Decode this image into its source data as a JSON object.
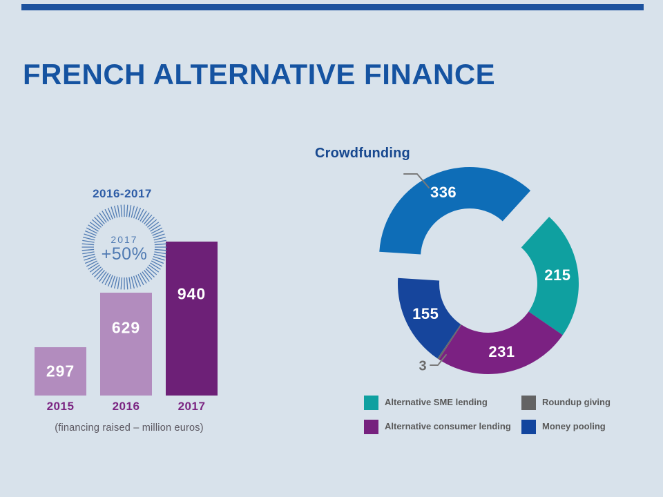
{
  "slide": {
    "title": "FRENCH ALTERNATIVE FINANCE",
    "colors": {
      "background": "#d8e2eb",
      "top_bar": "#1c529e",
      "title": "#1553a1"
    }
  },
  "chart_data": [
    {
      "type": "bar",
      "header": "2016-2017",
      "badge": {
        "year": "2017",
        "growth": "+50%",
        "color": "#4f7ab2"
      },
      "categories": [
        "2015",
        "2016",
        "2017"
      ],
      "values": [
        297,
        629,
        940
      ],
      "bar_colors": [
        "#b28cbe",
        "#b28cbe",
        "#6d2077"
      ],
      "value_label_color": "#ffffff",
      "category_label_color": "#7b2582",
      "header_color": "#2d5ca6",
      "caption": "(financing raised – million euros)",
      "caption_color": "#59555e",
      "ylim": [
        0,
        940
      ]
    },
    {
      "type": "donut",
      "title": "Crowdfunding",
      "title_color": "#17488f",
      "total": 940,
      "segments": [
        {
          "label": "Crowdfunding",
          "value": 336,
          "color": "#0e6db7",
          "exploded": true
        },
        {
          "label": "Alternative SME lending",
          "value": 215,
          "color": "#0fa0a0"
        },
        {
          "label": "Alternative consumer lending",
          "value": 231,
          "color": "#7b2182"
        },
        {
          "label": "Roundup giving",
          "value": 3,
          "color": "#6a6a6a",
          "label_outside": true
        },
        {
          "label": "Money pooling",
          "value": 155,
          "color": "#16459c"
        }
      ],
      "outside_label_color": "#6a6a6a",
      "legend": [
        {
          "label": "Alternative SME lending",
          "color": "#0fa0a0"
        },
        {
          "label": "Roundup giving",
          "color": "#636363"
        },
        {
          "label": "Alternative consumer lending",
          "color": "#76217e"
        },
        {
          "label": "Money pooling",
          "color": "#12459e"
        }
      ]
    }
  ]
}
